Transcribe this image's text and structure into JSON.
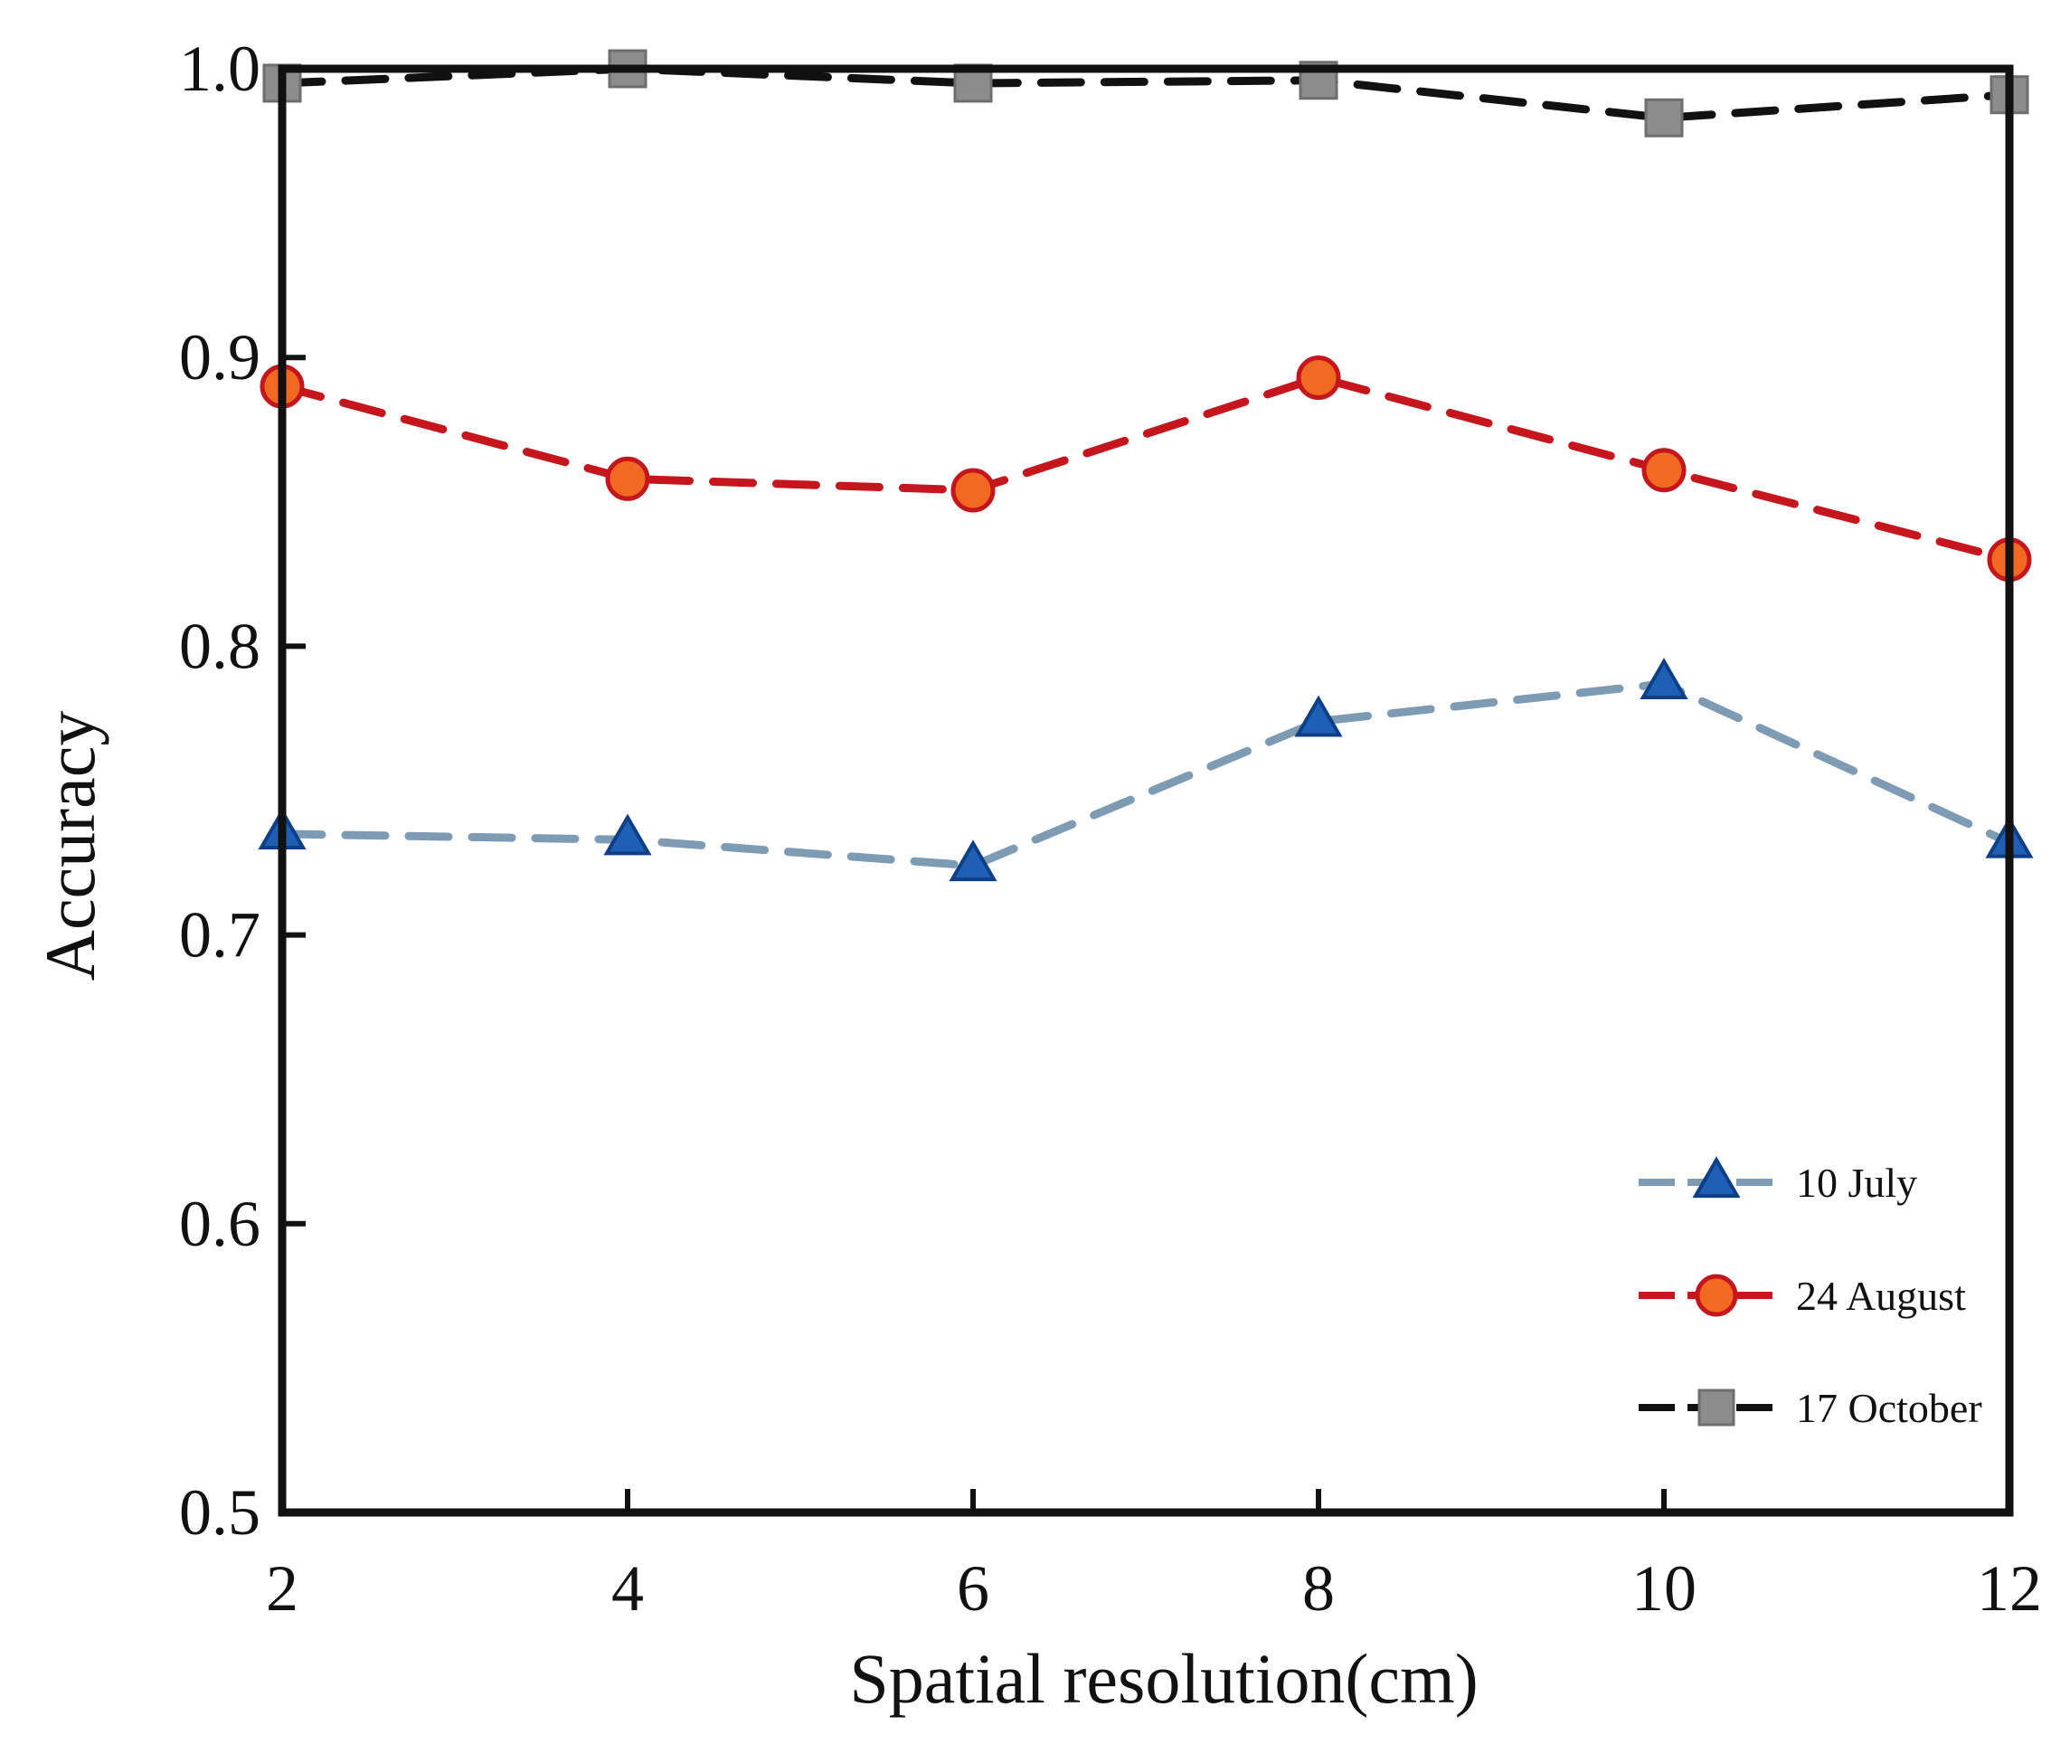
{
  "chart_data": {
    "type": "line",
    "title": "",
    "xlabel": "Spatial resolution(cm)",
    "ylabel": "Accuracy",
    "x": [
      2,
      4,
      6,
      8,
      10,
      12
    ],
    "xlim": [
      2,
      12
    ],
    "ylim": [
      0.5,
      1.0
    ],
    "xticks": [
      "2",
      "4",
      "6",
      "8",
      "10",
      "12"
    ],
    "yticks": [
      "0.5",
      "0.6",
      "0.7",
      "0.8",
      "0.9",
      "1.0"
    ],
    "xtick_values": [
      2,
      4,
      6,
      8,
      10,
      12
    ],
    "ytick_values": [
      0.5,
      0.6,
      0.7,
      0.8,
      0.9,
      1.0
    ],
    "grid": false,
    "legend_position": "bottom-right",
    "series": [
      {
        "name": "10 July",
        "values": [
          0.735,
          0.733,
          0.724,
          0.774,
          0.787,
          0.732
        ],
        "color": "#7d9bb3",
        "marker": "triangle",
        "marker_color": "#1f5fb5"
      },
      {
        "name": "24 August",
        "values": [
          0.89,
          0.858,
          0.854,
          0.893,
          0.861,
          0.83
        ],
        "color": "#c4161c",
        "marker": "circle",
        "marker_color": "#f26a21"
      },
      {
        "name": "17 October",
        "values": [
          0.995,
          1.0,
          0.995,
          0.996,
          0.983,
          0.991
        ],
        "color": "#111111",
        "marker": "square",
        "marker_color": "#8c8c8c"
      }
    ]
  }
}
